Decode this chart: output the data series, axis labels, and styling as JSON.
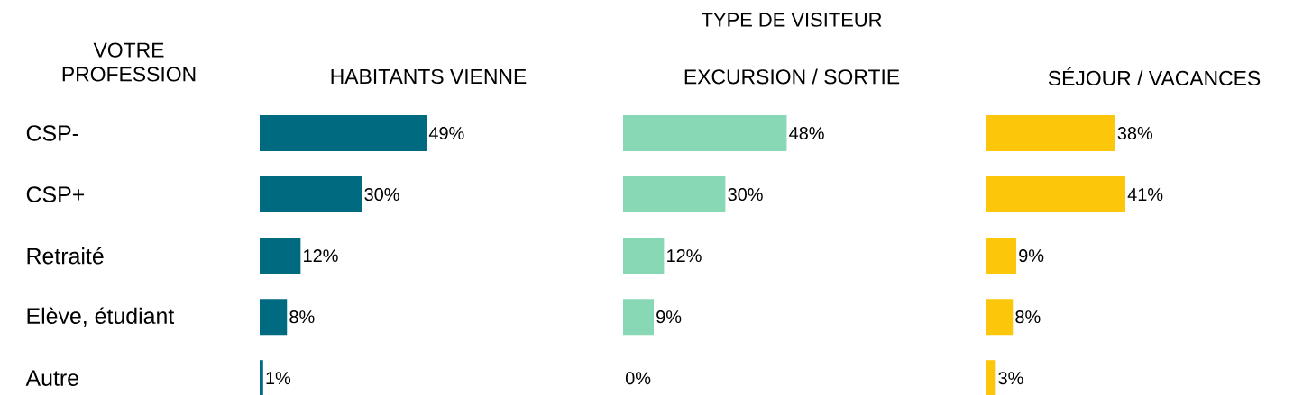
{
  "chart_data": [
    {
      "type": "bar",
      "orientation": "horizontal",
      "title": "HABITANTS VIENNE",
      "ylabel": "VOTRE PROFESSION",
      "categories": [
        "CSP-",
        "CSP+",
        "Retraité",
        "Elève, étudiant",
        "Autre"
      ],
      "values": [
        49,
        30,
        12,
        8,
        1
      ],
      "value_labels": [
        "49%",
        "30%",
        "12%",
        "8%",
        "1%"
      ],
      "color": "#006a80"
    },
    {
      "type": "bar",
      "orientation": "horizontal",
      "title": "EXCURSION / SORTIE",
      "annotations": [
        "TYPE DE VISITEUR"
      ],
      "tick_labels": false,
      "categories": [
        null,
        null,
        null,
        null,
        null
      ],
      "values": [
        48,
        30,
        12,
        9,
        0
      ],
      "value_labels": [
        "48%",
        "30%",
        "12%",
        "9%",
        "0%"
      ],
      "color": "#88d8b6"
    },
    {
      "type": "bar",
      "orientation": "horizontal",
      "title": "SÉJOUR / VACANCES",
      "tick_labels": false,
      "categories": [
        null,
        null,
        null,
        null,
        null
      ],
      "values": [
        38,
        41,
        9,
        8,
        3
      ],
      "value_labels": [
        "38%",
        "41%",
        "9%",
        "8%",
        "3%"
      ],
      "color": "#fcc60a"
    }
  ]
}
